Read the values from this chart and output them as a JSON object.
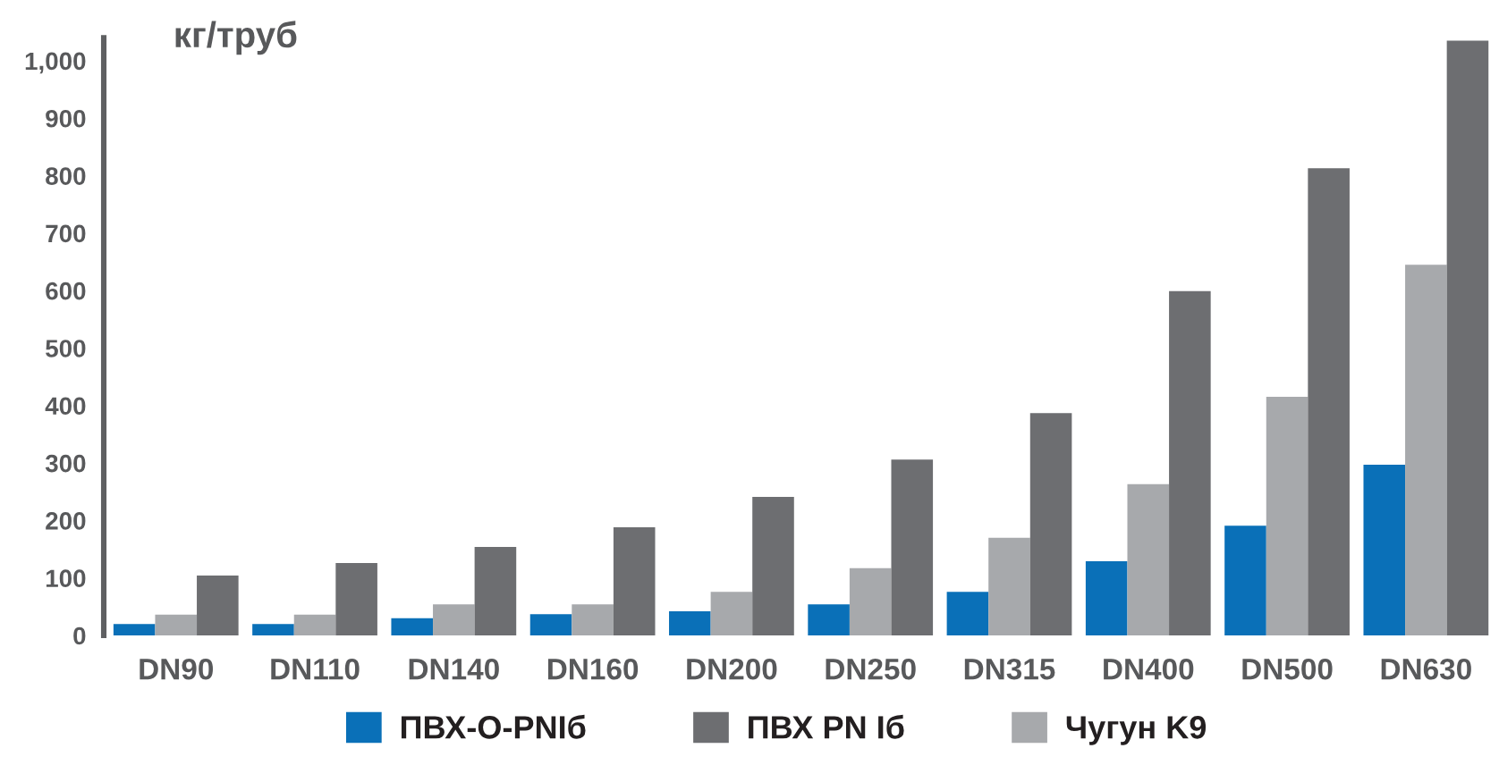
{
  "chart_data": {
    "type": "bar",
    "ylabel": "кг/труб",
    "categories": [
      "DN90",
      "DN110",
      "DN140",
      "DN160",
      "DN200",
      "DN250",
      "DN315",
      "DN400",
      "DN500",
      "DN630"
    ],
    "series": [
      {
        "name": "ПВХ-О-PNIб",
        "color": "#0a70b8",
        "values": [
          20,
          20,
          30,
          37,
          42,
          54,
          76,
          129,
          191,
          297
        ]
      },
      {
        "name": "Чугун K9",
        "color": "#a7a9ac",
        "values": [
          36,
          36,
          54,
          54,
          76,
          117,
          170,
          263,
          415,
          645
        ]
      },
      {
        "name": "ПВХ PN Iб",
        "color": "#6d6e71",
        "values": [
          104,
          126,
          154,
          188,
          241,
          306,
          387,
          599,
          813,
          1035
        ]
      }
    ],
    "ylim": [
      0,
      1040
    ],
    "yticks": [
      0,
      100,
      200,
      300,
      400,
      500,
      600,
      700,
      800,
      900,
      {
        "value": 1000,
        "label": "1,000"
      }
    ],
    "grid": false,
    "legend": "bottom"
  }
}
